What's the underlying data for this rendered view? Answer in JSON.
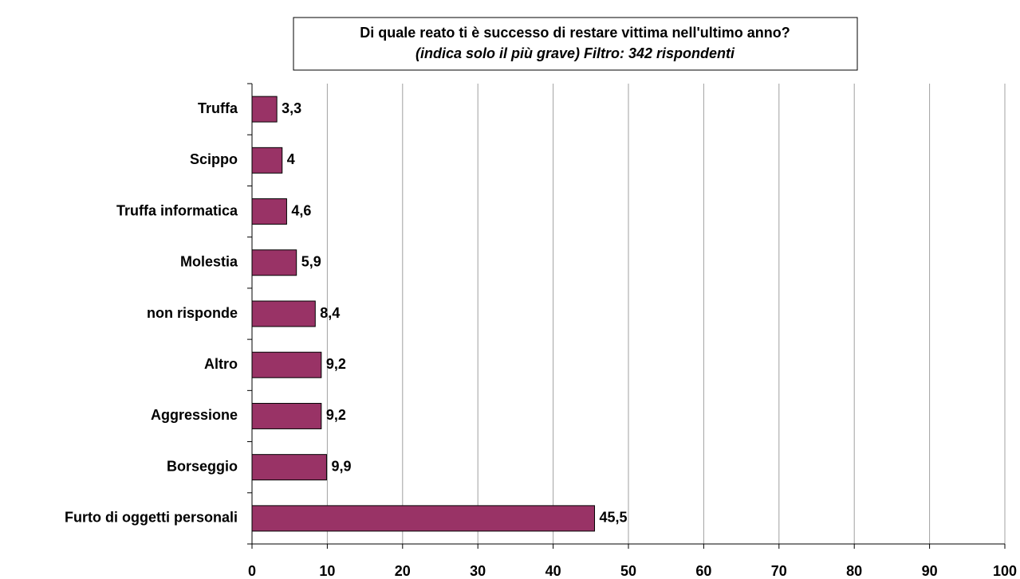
{
  "chart_data": {
    "type": "barh",
    "title": "Di quale reato ti è successo di restare vittima nell'ultimo anno?",
    "subtitle": "(indica solo il più grave) Filtro: 342 rispondenti",
    "categories": [
      "Truffa",
      "Scippo",
      "Truffa informatica",
      "Molestia",
      "non risponde",
      "Altro",
      "Aggressione",
      "Borseggio",
      "Furto di oggetti personali"
    ],
    "values": [
      3.3,
      4,
      4.6,
      5.9,
      8.4,
      9.2,
      9.2,
      9.9,
      45.5
    ],
    "value_labels": [
      "3,3",
      "4",
      "4,6",
      "5,9",
      "8,4",
      "9,2",
      "9,2",
      "9,9",
      "45,5"
    ],
    "color": "#993366",
    "xlim": [
      0,
      100
    ],
    "xticks": [
      0,
      10,
      20,
      30,
      40,
      50,
      60,
      70,
      80,
      90,
      100
    ],
    "grid": true
  }
}
